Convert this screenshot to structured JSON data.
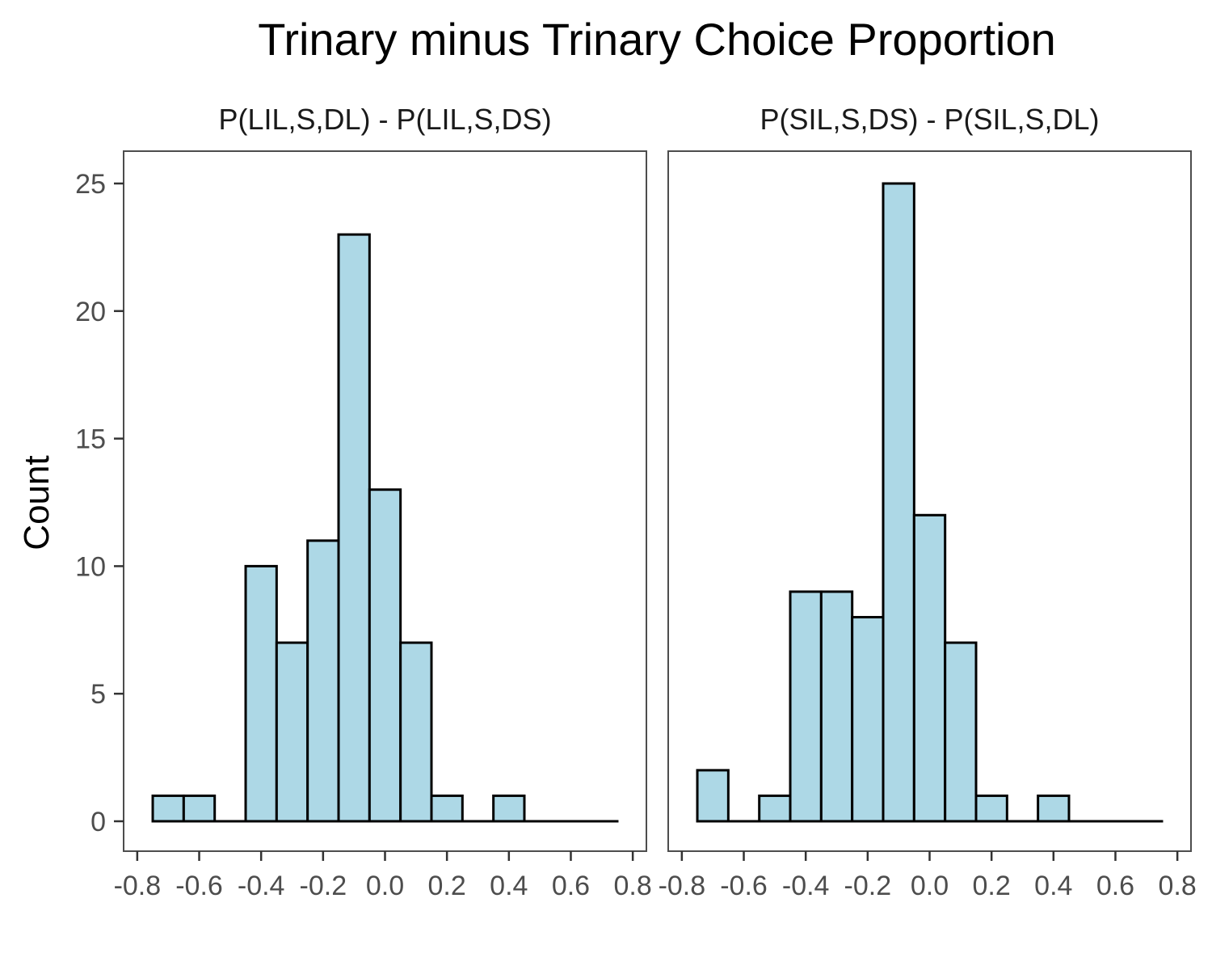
{
  "chart_data": {
    "type": "bar",
    "title": "Trinary minus Trinary Choice Proportion",
    "ylabel": "Count",
    "xlabel": "",
    "ylim": [
      0,
      25
    ],
    "yticks": [
      0,
      5,
      10,
      15,
      20,
      25
    ],
    "xticks": [
      -0.8,
      -0.6,
      -0.4,
      -0.2,
      0.0,
      0.2,
      0.4,
      0.6,
      0.8
    ],
    "xtick_labels": [
      "-0.8",
      "-0.6",
      "-0.4",
      "-0.2",
      "0.0",
      "0.2",
      "0.4",
      "0.6",
      "0.8"
    ],
    "ytick_labels": [
      "0",
      "5",
      "10",
      "15",
      "20",
      "25"
    ],
    "bin_width": 0.1,
    "bin_centers": [
      -0.7,
      -0.6,
      -0.5,
      -0.4,
      -0.3,
      -0.2,
      -0.1,
      0.0,
      0.1,
      0.2,
      0.3,
      0.4,
      0.5,
      0.6,
      0.7
    ],
    "bar_fill": "#add8e6",
    "bar_outline": "#000000",
    "panels": [
      {
        "strip_label": "P(LIL,S,DL) - P(LIL,S,DS)",
        "counts": [
          1,
          1,
          0,
          10,
          7,
          11,
          23,
          13,
          7,
          1,
          0,
          1,
          0,
          0,
          0
        ]
      },
      {
        "strip_label": "P(SIL,S,DS) - P(SIL,S,DL)",
        "counts": [
          2,
          0,
          1,
          9,
          9,
          8,
          25,
          12,
          7,
          1,
          0,
          1,
          0,
          0,
          0
        ]
      }
    ]
  }
}
